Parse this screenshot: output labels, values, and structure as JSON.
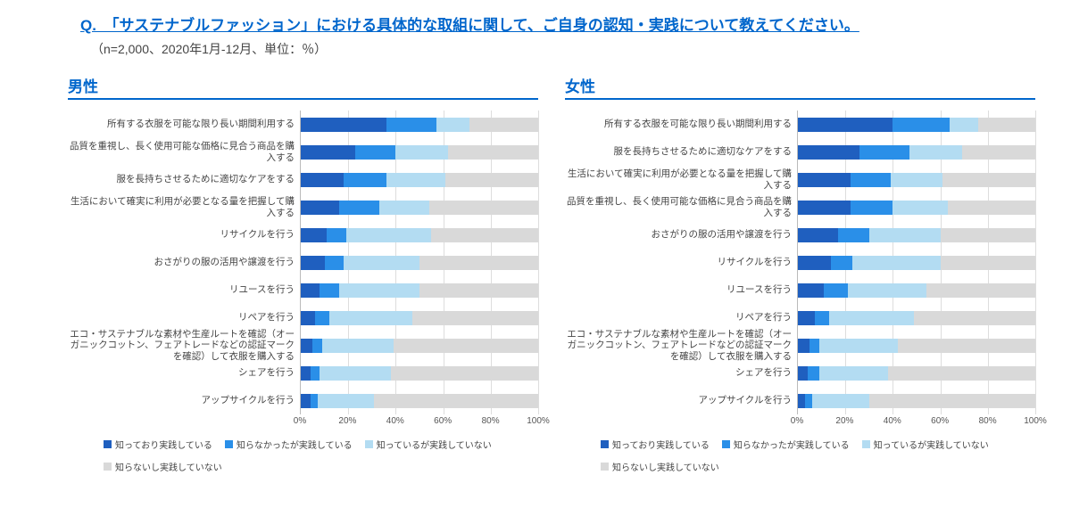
{
  "question": "Q.　「サステナブルファッション」における具体的な取組に関して、ご自身の認知・実践について教えてください。",
  "subtitle": "（n=2,000、2020年1月-12月、単位：％）",
  "colors": {
    "s1": "#1f5fbf",
    "s2": "#2a8fe8",
    "s3": "#b3dcf2",
    "s4": "#d9d9d9",
    "grid": "#dddddd",
    "axis_text": "#555555",
    "title": "#0066cc"
  },
  "legend_labels": [
    "知っており実践している",
    "知らなかったが実践している",
    "知っているが実践していない",
    "知らないし実践していない"
  ],
  "axis": {
    "min": 0,
    "max": 100,
    "ticks": [
      0,
      20,
      40,
      60,
      80,
      100
    ],
    "suffix": "%"
  },
  "panels": [
    {
      "title": "男性",
      "rows": [
        {
          "label": "所有する衣服を可能な限り長い期間利用する",
          "v": [
            36,
            21,
            14,
            29
          ]
        },
        {
          "label": "品質を重視し、長く使用可能な価格に見合う商品を購入する",
          "v": [
            23,
            17,
            22,
            38
          ]
        },
        {
          "label": "服を長持ちさせるために適切なケアをする",
          "v": [
            18,
            18,
            25,
            39
          ]
        },
        {
          "label": "生活において確実に利用が必要となる量を把握して購入する",
          "v": [
            16,
            17,
            21,
            46
          ]
        },
        {
          "label": "リサイクルを行う",
          "v": [
            11,
            8,
            36,
            45
          ]
        },
        {
          "label": "おさがりの服の活用や譲渡を行う",
          "v": [
            10,
            8,
            32,
            50
          ]
        },
        {
          "label": "リユースを行う",
          "v": [
            8,
            8,
            34,
            50
          ]
        },
        {
          "label": "リペアを行う",
          "v": [
            6,
            6,
            35,
            53
          ]
        },
        {
          "label": "エコ・サステナブルな素材や生産ルートを確認（オーガニックコットン、フェアトレードなどの認証マークを確認）して衣服を購入する",
          "v": [
            5,
            4,
            30,
            61
          ]
        },
        {
          "label": "シェアを行う",
          "v": [
            4,
            4,
            30,
            62
          ]
        },
        {
          "label": "アップサイクルを行う",
          "v": [
            4,
            3,
            24,
            69
          ]
        }
      ]
    },
    {
      "title": "女性",
      "rows": [
        {
          "label": "所有する衣服を可能な限り長い期間利用する",
          "v": [
            40,
            24,
            12,
            24
          ]
        },
        {
          "label": "服を長持ちさせるために適切なケアをする",
          "v": [
            26,
            21,
            22,
            31
          ]
        },
        {
          "label": "生活において確実に利用が必要となる量を把握して購入する",
          "v": [
            22,
            17,
            22,
            39
          ]
        },
        {
          "label": "品質を重視し、長く使用可能な価格に見合う商品を購入する",
          "v": [
            22,
            18,
            23,
            37
          ]
        },
        {
          "label": "おさがりの服の活用や譲渡を行う",
          "v": [
            17,
            13,
            30,
            40
          ]
        },
        {
          "label": "リサイクルを行う",
          "v": [
            14,
            9,
            37,
            40
          ]
        },
        {
          "label": "リユースを行う",
          "v": [
            11,
            10,
            33,
            46
          ]
        },
        {
          "label": "リペアを行う",
          "v": [
            7,
            6,
            36,
            51
          ]
        },
        {
          "label": "エコ・サステナブルな素材や生産ルートを確認（オーガニックコットン、フェアトレードなどの認証マークを確認）して衣服を購入する",
          "v": [
            5,
            4,
            33,
            58
          ]
        },
        {
          "label": "シェアを行う",
          "v": [
            4,
            5,
            29,
            62
          ]
        },
        {
          "label": "アップサイクルを行う",
          "v": [
            3,
            3,
            24,
            70
          ]
        }
      ]
    }
  ]
}
